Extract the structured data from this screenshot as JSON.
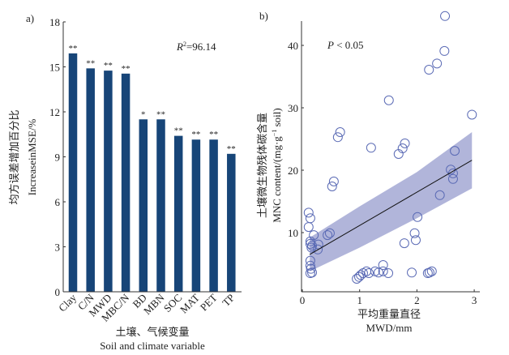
{
  "chart_data": [
    {
      "panel_label": "a)",
      "type": "bar",
      "title": "",
      "categories": [
        "Clay",
        "C/N",
        "MWD",
        "MBC/N",
        "BD",
        "MBN",
        "SOC",
        "MAT",
        "PET",
        "TP"
      ],
      "values": [
        15.9,
        14.9,
        14.75,
        14.55,
        11.5,
        11.5,
        10.4,
        10.15,
        10.15,
        9.2
      ],
      "significance": [
        "**",
        "**",
        "**",
        "**",
        "*",
        "**",
        "**",
        "**",
        "**",
        "**"
      ],
      "ylim": [
        0,
        18
      ],
      "yticks": [
        "0",
        "3",
        "6",
        "9",
        "12",
        "15",
        "18"
      ],
      "ytick_values": [
        0,
        3,
        6,
        9,
        12,
        15,
        18
      ],
      "ylabel_cn": "均方误差增加百分比",
      "ylabel": "IncreaseinMSE/%",
      "xlabel_cn": "土壤、气候变量",
      "xlabel": "Soil and climate variable",
      "annotation": {
        "r2_prefix": "R",
        "r2_sup": "2",
        "r2_value": "=96.14"
      },
      "bar_color": "#174578",
      "grid": false
    },
    {
      "panel_label": "b)",
      "type": "scatter",
      "title": "",
      "xlim": [
        0,
        3.05
      ],
      "ylim": [
        0.5,
        44
      ],
      "xticks": [
        "0",
        "1",
        "2",
        "3"
      ],
      "xtick_values": [
        0,
        1,
        2,
        3
      ],
      "yticks": [
        "10",
        "20",
        "30",
        "40"
      ],
      "ytick_values": [
        10,
        20,
        30,
        40
      ],
      "xlabel_cn": "平均重量直径",
      "xlabel": "MWD/mm",
      "ylabel_cn": "土壤微生物残体碳含量",
      "ylabel": "MNC content/(mg·g",
      "ylabel_sup": "−1",
      "ylabel_end": " soil)",
      "annotation": {
        "p_prefix": "P",
        "p_value": " < 0.05"
      },
      "point_color": "#5b6bb5",
      "band_color": "#a3a8d4",
      "line_color": "#111111",
      "points": [
        [
          0.11,
          13.2
        ],
        [
          0.14,
          12.3
        ],
        [
          0.11,
          10.9
        ],
        [
          0.2,
          9.6
        ],
        [
          0.44,
          9.6
        ],
        [
          0.48,
          9.9
        ],
        [
          0.14,
          8.6
        ],
        [
          0.17,
          7.9
        ],
        [
          0.28,
          8.1
        ],
        [
          0.27,
          7.3
        ],
        [
          0.14,
          8.2
        ],
        [
          0.16,
          7.6
        ],
        [
          0.14,
          5.5
        ],
        [
          0.14,
          4.7
        ],
        [
          0.14,
          3.5
        ],
        [
          0.15,
          4.2
        ],
        [
          0.17,
          3.6
        ],
        [
          0.52,
          17.4
        ],
        [
          0.55,
          18.2
        ],
        [
          0.62,
          25.3
        ],
        [
          0.66,
          26.1
        ],
        [
          1.2,
          23.6
        ],
        [
          1.51,
          31.2
        ],
        [
          1.68,
          22.6
        ],
        [
          1.75,
          23.5
        ],
        [
          1.79,
          24.3
        ],
        [
          2.21,
          36.1
        ],
        [
          2.35,
          37.1
        ],
        [
          2.48,
          39.1
        ],
        [
          2.49,
          44.7
        ],
        [
          2.96,
          28.9
        ],
        [
          2.66,
          23.1
        ],
        [
          2.59,
          20.1
        ],
        [
          2.63,
          19.5
        ],
        [
          2.63,
          18.6
        ],
        [
          2.4,
          16.0
        ],
        [
          2.01,
          12.5
        ],
        [
          1.96,
          9.9
        ],
        [
          1.98,
          8.8
        ],
        [
          1.78,
          8.3
        ],
        [
          0.95,
          2.6
        ],
        [
          0.99,
          2.9
        ],
        [
          1.02,
          3.2
        ],
        [
          1.06,
          3.5
        ],
        [
          1.12,
          3.8
        ],
        [
          1.16,
          3.5
        ],
        [
          1.27,
          3.8
        ],
        [
          1.33,
          3.6
        ],
        [
          1.41,
          4.8
        ],
        [
          1.41,
          3.8
        ],
        [
          1.5,
          3.5
        ],
        [
          1.91,
          3.6
        ],
        [
          2.19,
          3.5
        ],
        [
          2.22,
          3.6
        ],
        [
          2.26,
          3.8
        ]
      ],
      "fit_line": {
        "x": [
          0.13,
          2.96
        ],
        "y": [
          6.5,
          21.6
        ]
      },
      "confidence_band": {
        "x": [
          0.13,
          1.0,
          2.0,
          2.96
        ],
        "upper": [
          9.2,
          14.2,
          19.7,
          26.1
        ],
        "lower": [
          3.8,
          7.6,
          12.3,
          17.1
        ]
      },
      "grid": false
    }
  ]
}
